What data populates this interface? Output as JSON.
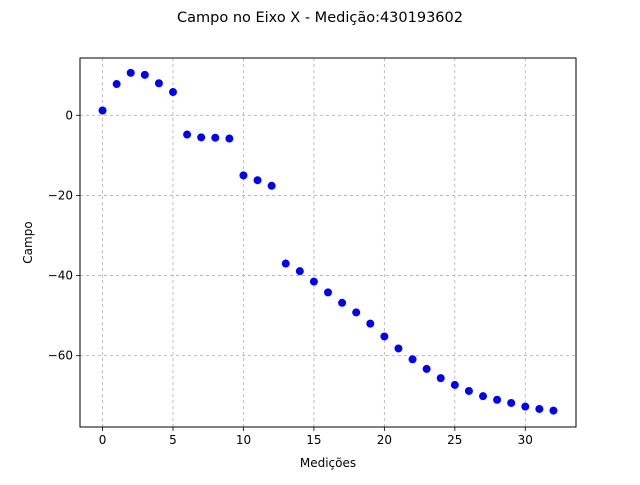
{
  "chart_data": {
    "type": "scatter",
    "title": "Campo no Eixo X - Medição:430193602",
    "xlabel": "Medições",
    "ylabel": "Campo",
    "xlim": [
      -1.6,
      33.6
    ],
    "ylim": [
      -77.8,
      14.3
    ],
    "grid": true,
    "marker_color": "#0000ff",
    "grid_color": "#b0b0b0",
    "xticks": [
      0,
      5,
      10,
      15,
      20,
      25,
      30
    ],
    "xtick_labels": [
      "0",
      "5",
      "10",
      "15",
      "20",
      "25",
      "30"
    ],
    "yticks": [
      0,
      -20,
      -40,
      -60
    ],
    "ytick_labels": [
      "0",
      "−20",
      "−40",
      "−60"
    ],
    "series": [
      {
        "name": "Campo",
        "x": [
          0,
          1,
          2,
          3,
          4,
          5,
          6,
          7,
          8,
          9,
          10,
          11,
          12,
          13,
          14,
          15,
          16,
          17,
          18,
          19,
          20,
          21,
          22,
          23,
          24,
          25,
          26,
          27,
          28,
          29,
          30,
          31,
          32
        ],
        "y": [
          1.2,
          7.8,
          10.6,
          10.1,
          8.0,
          5.8,
          -4.8,
          -5.5,
          -5.6,
          -5.8,
          -15.0,
          -16.2,
          -17.6,
          -37.0,
          -38.9,
          -41.5,
          -44.2,
          -46.8,
          -49.2,
          -52.0,
          -55.2,
          -58.2,
          -60.9,
          -63.3,
          -65.6,
          -67.3,
          -68.8,
          -70.1,
          -71.0,
          -71.8,
          -72.7,
          -73.3,
          -73.7
        ]
      }
    ]
  }
}
